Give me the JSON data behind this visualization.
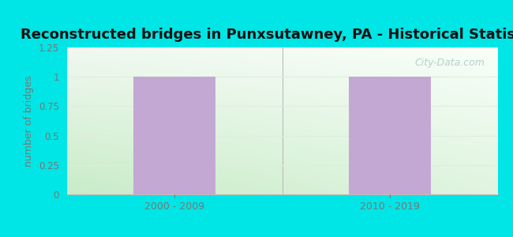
{
  "title": "Reconstructed bridges in Punxsutawney, PA - Historical Statistics",
  "categories": [
    "2000 - 2009",
    "2010 - 2019"
  ],
  "values": [
    1,
    1
  ],
  "bar_color": "#c4a8d4",
  "ylim": [
    0,
    1.25
  ],
  "yticks": [
    0,
    0.25,
    0.5,
    0.75,
    1,
    1.25
  ],
  "ytick_labels": [
    "0",
    "0.25",
    "0.5",
    "0.75",
    "1",
    "1.25"
  ],
  "ylabel": "number of bridges",
  "background_outer": "#00e5e5",
  "title_fontsize": 13,
  "title_color": "#111111",
  "tick_color": "#777777",
  "ylabel_color": "#777777",
  "xtick_color": "#777777",
  "watermark": "City-Data.com",
  "grid_color": "#e0ece0",
  "bg_gradient_left": "#c8ecc8",
  "bg_gradient_right": "#f0f8f0",
  "bg_gradient_top": "#f8fff8",
  "bg_gradient_bottom": "#c8ecc8"
}
